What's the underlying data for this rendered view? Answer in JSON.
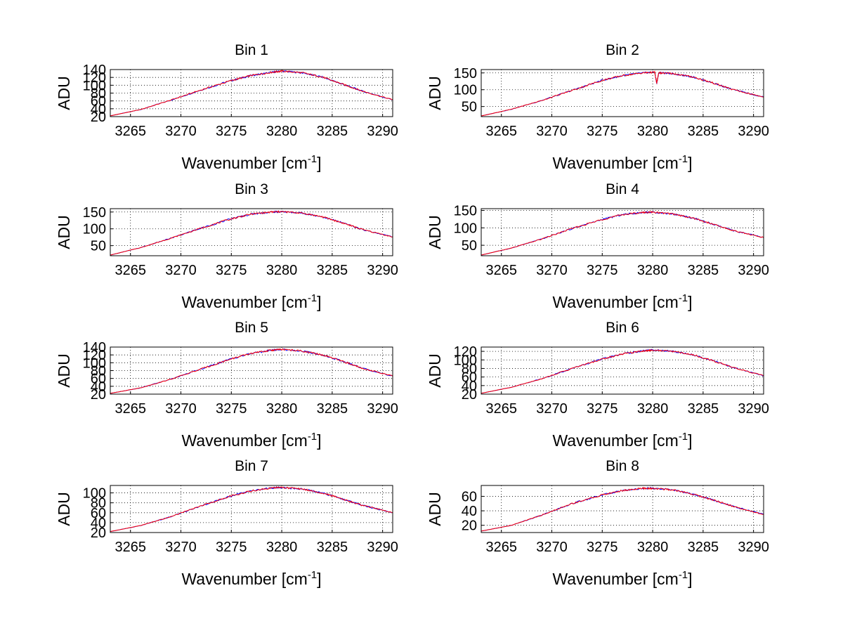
{
  "chart_data": [
    {
      "type": "line",
      "title": "Bin 1",
      "xlabel": "Wavenumber [cm",
      "xlabel_sup": "-1",
      "xlabel_end": "]",
      "ylabel": "ADU",
      "xlim": [
        3263,
        3291
      ],
      "ylim": [
        20,
        140
      ],
      "xticks": [
        3265,
        3270,
        3275,
        3280,
        3285,
        3290
      ],
      "yticks": [
        20,
        40,
        60,
        80,
        100,
        120,
        140
      ],
      "grid": true,
      "series": [
        {
          "name": "blue",
          "color": "#0000ff",
          "x": [
            3263,
            3266,
            3269,
            3272,
            3275,
            3277,
            3279,
            3280,
            3282,
            3284,
            3286,
            3288,
            3291
          ],
          "y": [
            22,
            38,
            62,
            88,
            112,
            125,
            133,
            136,
            132,
            121,
            103,
            85,
            63
          ]
        },
        {
          "name": "red",
          "color": "#ff0000",
          "x": [
            3263,
            3266,
            3269,
            3272,
            3275,
            3277,
            3279,
            3280,
            3282,
            3284,
            3286,
            3288,
            3291
          ],
          "y": [
            22,
            38,
            62,
            88,
            112,
            125,
            133,
            136,
            132,
            121,
            103,
            85,
            63
          ]
        }
      ]
    },
    {
      "type": "line",
      "title": "Bin 2",
      "xlabel": "Wavenumber [cm",
      "xlabel_sup": "-1",
      "xlabel_end": "]",
      "ylabel": "ADU",
      "xlim": [
        3263,
        3291
      ],
      "ylim": [
        20,
        160
      ],
      "xticks": [
        3265,
        3270,
        3275,
        3280,
        3285,
        3290
      ],
      "yticks": [
        50,
        100,
        150
      ],
      "grid": true,
      "series": [
        {
          "name": "blue",
          "color": "#0000ff",
          "x": [
            3263,
            3266,
            3269,
            3272,
            3275,
            3277,
            3279,
            3280.2,
            3280.4,
            3280.6,
            3282,
            3284,
            3286,
            3288,
            3291
          ],
          "y": [
            22,
            42,
            68,
            98,
            128,
            142,
            150,
            152,
            118,
            150,
            148,
            138,
            120,
            100,
            78
          ]
        },
        {
          "name": "red",
          "color": "#ff0000",
          "x": [
            3263,
            3266,
            3269,
            3272,
            3275,
            3277,
            3279,
            3280.2,
            3280.4,
            3280.6,
            3282,
            3284,
            3286,
            3288,
            3291
          ],
          "y": [
            22,
            42,
            68,
            98,
            128,
            142,
            150,
            152,
            120,
            150,
            148,
            138,
            120,
            100,
            78
          ]
        }
      ]
    },
    {
      "type": "line",
      "title": "Bin 3",
      "xlabel": "Wavenumber [cm",
      "xlabel_sup": "-1",
      "xlabel_end": "]",
      "ylabel": "ADU",
      "xlim": [
        3263,
        3291
      ],
      "ylim": [
        20,
        160
      ],
      "xticks": [
        3265,
        3270,
        3275,
        3280,
        3285,
        3290
      ],
      "yticks": [
        50,
        100,
        150
      ],
      "grid": true,
      "series": [
        {
          "name": "blue",
          "color": "#0000ff",
          "x": [
            3263,
            3266,
            3269,
            3272,
            3275,
            3277,
            3279,
            3280,
            3282,
            3284,
            3286,
            3288,
            3291
          ],
          "y": [
            22,
            44,
            72,
            102,
            130,
            144,
            150,
            151,
            147,
            136,
            118,
            98,
            76
          ]
        },
        {
          "name": "red",
          "color": "#ff0000",
          "x": [
            3263,
            3266,
            3269,
            3272,
            3275,
            3277,
            3279,
            3280,
            3282,
            3284,
            3286,
            3288,
            3291
          ],
          "y": [
            22,
            44,
            72,
            102,
            130,
            144,
            150,
            151,
            147,
            136,
            118,
            98,
            76
          ]
        }
      ]
    },
    {
      "type": "line",
      "title": "Bin 4",
      "xlabel": "Wavenumber [cm",
      "xlabel_sup": "-1",
      "xlabel_end": "]",
      "ylabel": "ADU",
      "xlim": [
        3263,
        3291
      ],
      "ylim": [
        20,
        155
      ],
      "xticks": [
        3265,
        3270,
        3275,
        3280,
        3285,
        3290
      ],
      "yticks": [
        50,
        100,
        150
      ],
      "grid": true,
      "series": [
        {
          "name": "blue",
          "color": "#0000ff",
          "x": [
            3263,
            3266,
            3269,
            3272,
            3275,
            3277,
            3279,
            3280,
            3282,
            3284,
            3286,
            3288,
            3291
          ],
          "y": [
            22,
            42,
            68,
            98,
            124,
            138,
            144,
            145,
            140,
            128,
            110,
            92,
            72
          ]
        },
        {
          "name": "red",
          "color": "#ff0000",
          "x": [
            3263,
            3266,
            3269,
            3272,
            3275,
            3277,
            3279,
            3280,
            3282,
            3284,
            3286,
            3288,
            3291
          ],
          "y": [
            22,
            42,
            68,
            98,
            124,
            138,
            144,
            145,
            140,
            128,
            110,
            92,
            72
          ]
        }
      ]
    },
    {
      "type": "line",
      "title": "Bin 5",
      "xlabel": "Wavenumber [cm",
      "xlabel_sup": "-1",
      "xlabel_end": "]",
      "ylabel": "ADU",
      "xlim": [
        3263,
        3291
      ],
      "ylim": [
        20,
        140
      ],
      "xticks": [
        3265,
        3270,
        3275,
        3280,
        3285,
        3290
      ],
      "yticks": [
        20,
        40,
        60,
        80,
        100,
        120,
        140
      ],
      "grid": true,
      "series": [
        {
          "name": "blue",
          "color": "#0000ff",
          "x": [
            3263,
            3266,
            3269,
            3272,
            3275,
            3277,
            3279,
            3280,
            3282,
            3284,
            3286,
            3288,
            3291
          ],
          "y": [
            22,
            36,
            58,
            84,
            110,
            124,
            132,
            134,
            130,
            120,
            104,
            86,
            66
          ]
        },
        {
          "name": "red",
          "color": "#ff0000",
          "x": [
            3263,
            3266,
            3269,
            3272,
            3275,
            3277,
            3279,
            3280,
            3282,
            3284,
            3286,
            3288,
            3291
          ],
          "y": [
            22,
            36,
            58,
            84,
            110,
            124,
            132,
            134,
            130,
            120,
            104,
            86,
            66
          ]
        }
      ]
    },
    {
      "type": "line",
      "title": "Bin 6",
      "xlabel": "Wavenumber [cm",
      "xlabel_sup": "-1",
      "xlabel_end": "]",
      "ylabel": "ADU",
      "xlim": [
        3263,
        3291
      ],
      "ylim": [
        20,
        130
      ],
      "xticks": [
        3265,
        3270,
        3275,
        3280,
        3285,
        3290
      ],
      "yticks": [
        20,
        40,
        60,
        80,
        100,
        120
      ],
      "grid": true,
      "series": [
        {
          "name": "blue",
          "color": "#0000ff",
          "x": [
            3263,
            3266,
            3269,
            3272,
            3275,
            3277,
            3279,
            3280,
            3282,
            3284,
            3286,
            3288,
            3291
          ],
          "y": [
            22,
            36,
            56,
            80,
            102,
            114,
            121,
            123,
            120,
            112,
            98,
            82,
            63
          ]
        },
        {
          "name": "red",
          "color": "#ff0000",
          "x": [
            3263,
            3266,
            3269,
            3272,
            3275,
            3277,
            3279,
            3280,
            3282,
            3284,
            3286,
            3288,
            3291
          ],
          "y": [
            22,
            36,
            56,
            80,
            102,
            114,
            121,
            123,
            120,
            112,
            98,
            82,
            63
          ]
        }
      ]
    },
    {
      "type": "line",
      "title": "Bin 7",
      "xlabel": "Wavenumber [cm",
      "xlabel_sup": "-1",
      "xlabel_end": "]",
      "ylabel": "ADU",
      "xlim": [
        3263,
        3291
      ],
      "ylim": [
        20,
        115
      ],
      "xticks": [
        3265,
        3270,
        3275,
        3280,
        3285,
        3290
      ],
      "yticks": [
        20,
        40,
        60,
        80,
        100
      ],
      "grid": true,
      "series": [
        {
          "name": "blue",
          "color": "#0000ff",
          "x": [
            3263,
            3266,
            3269,
            3272,
            3275,
            3277,
            3279,
            3280,
            3282,
            3284,
            3286,
            3288,
            3291
          ],
          "y": [
            22,
            34,
            52,
            74,
            94,
            104,
            110,
            111,
            108,
            100,
            88,
            75,
            60
          ]
        },
        {
          "name": "red",
          "color": "#ff0000",
          "x": [
            3263,
            3266,
            3269,
            3272,
            3275,
            3277,
            3279,
            3280,
            3282,
            3284,
            3286,
            3288,
            3291
          ],
          "y": [
            22,
            34,
            52,
            74,
            94,
            104,
            110,
            111,
            108,
            100,
            88,
            75,
            60
          ]
        }
      ]
    },
    {
      "type": "line",
      "title": "Bin 8",
      "xlabel": "Wavenumber [cm",
      "xlabel_sup": "-1",
      "xlabel_end": "]",
      "ylabel": "ADU",
      "xlim": [
        3263,
        3291
      ],
      "ylim": [
        10,
        75
      ],
      "xticks": [
        3265,
        3270,
        3275,
        3280,
        3285,
        3290
      ],
      "yticks": [
        20,
        40,
        60
      ],
      "grid": true,
      "series": [
        {
          "name": "blue",
          "color": "#0000ff",
          "x": [
            3263,
            3266,
            3269,
            3272,
            3275,
            3277,
            3279,
            3280,
            3282,
            3284,
            3286,
            3288,
            3291
          ],
          "y": [
            12,
            20,
            34,
            50,
            62,
            68,
            71,
            71,
            69,
            63,
            55,
            46,
            35
          ]
        },
        {
          "name": "red",
          "color": "#ff0000",
          "x": [
            3263,
            3266,
            3269,
            3272,
            3275,
            3277,
            3279,
            3280,
            3282,
            3284,
            3286,
            3288,
            3291
          ],
          "y": [
            12,
            20,
            34,
            50,
            62,
            68,
            71,
            71,
            69,
            63,
            55,
            46,
            35
          ]
        }
      ]
    }
  ]
}
